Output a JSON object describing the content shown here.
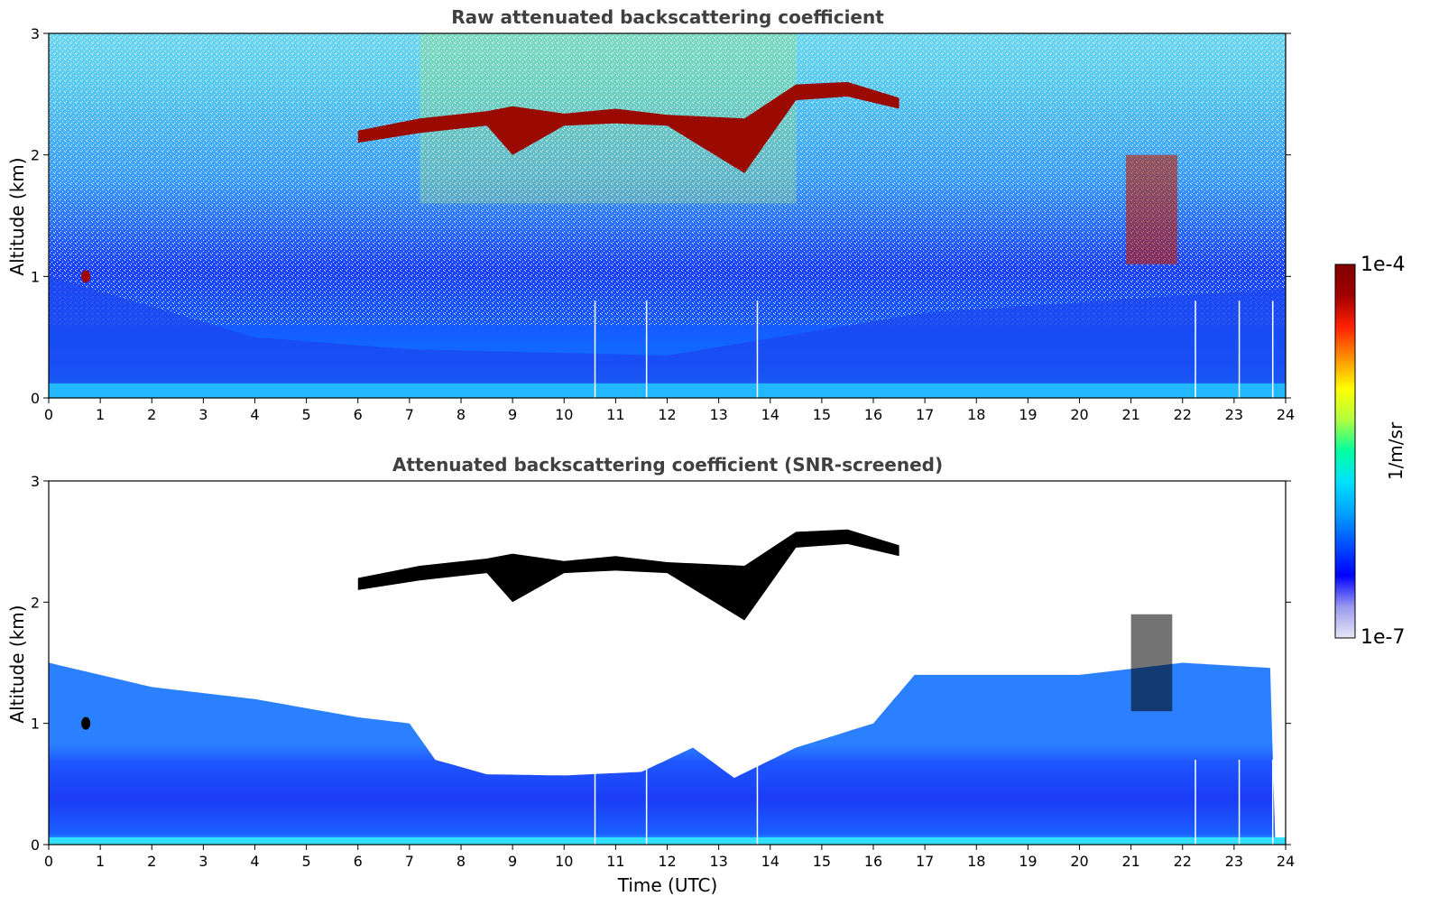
{
  "colors": {
    "axis": "#000000",
    "title_text": "#404040",
    "cloud_core_screened": "#000000",
    "colormap": [
      "#e6e6f5",
      "#9a9af0",
      "#0000ff",
      "#0050ff",
      "#00a0ff",
      "#00e0ff",
      "#00ffa0",
      "#b0ff40",
      "#ffff00",
      "#ff9000",
      "#ff2000",
      "#a00000",
      "#800000"
    ]
  },
  "chart_data": [
    {
      "type": "heatmap",
      "title": "Raw attenuated backscattering coefficient",
      "xlabel": "",
      "ylabel": "Altitude (km)",
      "xlim": [
        0,
        24
      ],
      "ylim": [
        0,
        3
      ],
      "xticks": [
        "0",
        "1",
        "2",
        "3",
        "4",
        "5",
        "6",
        "7",
        "8",
        "9",
        "10",
        "11",
        "12",
        "13",
        "14",
        "15",
        "16",
        "17",
        "18",
        "19",
        "20",
        "21",
        "22",
        "23",
        "24"
      ],
      "yticks": [
        "0",
        "1",
        "2",
        "3"
      ],
      "cloud_layer_km": [
        {
          "t": 6.0,
          "top": 2.2,
          "base": 2.1
        },
        {
          "t": 7.2,
          "top": 2.3,
          "base": 2.18
        },
        {
          "t": 8.5,
          "top": 2.36,
          "base": 2.24
        },
        {
          "t": 9.0,
          "top": 2.4,
          "base": 2.0
        },
        {
          "t": 10.0,
          "top": 2.34,
          "base": 2.24
        },
        {
          "t": 11.0,
          "top": 2.38,
          "base": 2.26
        },
        {
          "t": 12.0,
          "top": 2.33,
          "base": 2.24
        },
        {
          "t": 13.5,
          "top": 2.3,
          "base": 1.85
        },
        {
          "t": 14.5,
          "top": 2.58,
          "base": 2.45
        },
        {
          "t": 15.5,
          "top": 2.6,
          "base": 2.48
        },
        {
          "t": 16.5,
          "top": 2.47,
          "base": 2.38
        }
      ],
      "boundary_layer_top_km": [
        {
          "t": 0,
          "h": 1.0
        },
        {
          "t": 4,
          "h": 0.5
        },
        {
          "t": 7,
          "h": 0.4
        },
        {
          "t": 12,
          "h": 0.35
        },
        {
          "t": 17,
          "h": 0.7
        },
        {
          "t": 24,
          "h": 0.9
        }
      ],
      "data_gaps_utc": [
        10.6,
        11.6,
        13.75,
        22.25,
        23.1,
        23.75
      ]
    },
    {
      "type": "heatmap",
      "title": "Attenuated backscattering coefficient (SNR-screened)",
      "xlabel": "Time (UTC)",
      "ylabel": "Altitude (km)",
      "xlim": [
        0,
        24
      ],
      "ylim": [
        0,
        3
      ],
      "xticks": [
        "0",
        "1",
        "2",
        "3",
        "4",
        "5",
        "6",
        "7",
        "8",
        "9",
        "10",
        "11",
        "12",
        "13",
        "14",
        "15",
        "16",
        "17",
        "18",
        "19",
        "20",
        "21",
        "22",
        "23",
        "24"
      ],
      "yticks": [
        "0",
        "1",
        "2",
        "3"
      ],
      "screened_top_km": [
        {
          "t": 0,
          "h": 1.5
        },
        {
          "t": 2,
          "h": 1.3
        },
        {
          "t": 4,
          "h": 1.2
        },
        {
          "t": 6,
          "h": 1.05
        },
        {
          "t": 7,
          "h": 1.0
        },
        {
          "t": 7.5,
          "h": 0.7
        },
        {
          "t": 8.5,
          "h": 0.58
        },
        {
          "t": 10,
          "h": 0.57
        },
        {
          "t": 11.5,
          "h": 0.6
        },
        {
          "t": 12.5,
          "h": 0.8
        },
        {
          "t": 13.3,
          "h": 0.55
        },
        {
          "t": 14.5,
          "h": 0.8
        },
        {
          "t": 16,
          "h": 1.0
        },
        {
          "t": 16.8,
          "h": 1.4
        },
        {
          "t": 18,
          "h": 1.4
        },
        {
          "t": 20,
          "h": 1.4
        },
        {
          "t": 22,
          "h": 1.5
        },
        {
          "t": 24,
          "h": 1.45
        }
      ]
    }
  ],
  "colorbar": {
    "label": "1/m/sr",
    "max_label": "1e-4",
    "min_label": "1e-7",
    "range": [
      1e-07,
      0.0001
    ],
    "scale": "log"
  }
}
